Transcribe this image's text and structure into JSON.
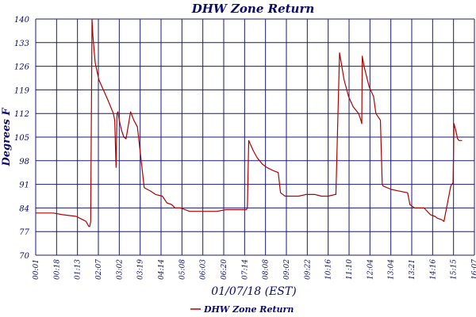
{
  "chart_data": {
    "type": "line",
    "title": "DHW Zone Return",
    "xlabel": "01/07/18 (EST)",
    "ylabel": "Degrees F",
    "ylim": [
      70,
      140
    ],
    "yticks": [
      140,
      133,
      126,
      119,
      112,
      105,
      98,
      91,
      84,
      77,
      70
    ],
    "xlim": [
      "00:01",
      "16:07"
    ],
    "xticks": [
      "00:01",
      "00:18",
      "01:13",
      "02:07",
      "03:02",
      "03:19",
      "04:14",
      "05:08",
      "06:03",
      "06:20",
      "07:14",
      "08:08",
      "09:02",
      "09:22",
      "10:16",
      "11:10",
      "12:04",
      "13:04",
      "13:21",
      "14:16",
      "15:15",
      "16:07"
    ],
    "grid": true,
    "legend": "bottom-center",
    "colors": {
      "line": "#b00000",
      "grid": "#1a1a6e",
      "text": "#0a0a6e"
    },
    "series": [
      {
        "name": "DHW Zone Return",
        "x": [
          "00:01",
          "00:40",
          "01:00",
          "01:30",
          "01:45",
          "01:52",
          "01:58",
          "02:00",
          "02:02",
          "02:05",
          "02:07",
          "02:12",
          "02:20",
          "02:40",
          "02:52",
          "02:55",
          "02:58",
          "03:00",
          "03:02",
          "03:05",
          "03:10",
          "03:15",
          "03:20",
          "03:30",
          "03:37",
          "03:45",
          "04:00",
          "04:14",
          "04:25",
          "04:40",
          "04:50",
          "05:00",
          "05:08",
          "05:20",
          "05:40",
          "06:00",
          "06:10",
          "06:20",
          "06:40",
          "07:00",
          "07:14",
          "07:30",
          "07:45",
          "07:47",
          "07:50",
          "08:00",
          "08:08",
          "08:20",
          "08:30",
          "08:45",
          "08:55",
          "09:00",
          "09:10",
          "09:22",
          "09:40",
          "09:56",
          "10:16",
          "10:30",
          "10:45",
          "11:00",
          "11:02",
          "11:10",
          "11:20",
          "11:30",
          "11:40",
          "11:52",
          "11:57",
          "11:59",
          "12:00",
          "12:04",
          "12:15",
          "12:25",
          "12:30",
          "12:40",
          "12:44",
          "12:46",
          "13:04",
          "13:21",
          "13:40",
          "13:45",
          "13:50",
          "13:55",
          "14:16",
          "14:30",
          "14:40",
          "14:45",
          "14:55",
          "15:00",
          "15:15",
          "15:20",
          "15:22",
          "15:26",
          "15:30",
          "15:33",
          "15:35",
          "15:40"
        ],
        "values": [
          82.5,
          82.5,
          82,
          81.5,
          80.5,
          80,
          78.5,
          78.5,
          80,
          140,
          135,
          127,
          122,
          116,
          112,
          110,
          96,
          112,
          112.5,
          110,
          107,
          105,
          104.5,
          112.5,
          110,
          108,
          90,
          89,
          88,
          87.5,
          85.5,
          85,
          84,
          84,
          83,
          83,
          83,
          83,
          83,
          83.5,
          83.5,
          83.5,
          83.5,
          84,
          104,
          101,
          99,
          97,
          96,
          95,
          94.5,
          88.5,
          87.5,
          87.5,
          87.5,
          88,
          88,
          87.5,
          87.5,
          88,
          88,
          130,
          122,
          117,
          114,
          112,
          110,
          109,
          129,
          126,
          120,
          117,
          112,
          110,
          91,
          90.5,
          89.5,
          89,
          88.5,
          85,
          84.5,
          84,
          84,
          82,
          81.5,
          81,
          80.5,
          80,
          90.5,
          91.5,
          109,
          107,
          104.5,
          104,
          104,
          104
        ]
      }
    ]
  }
}
